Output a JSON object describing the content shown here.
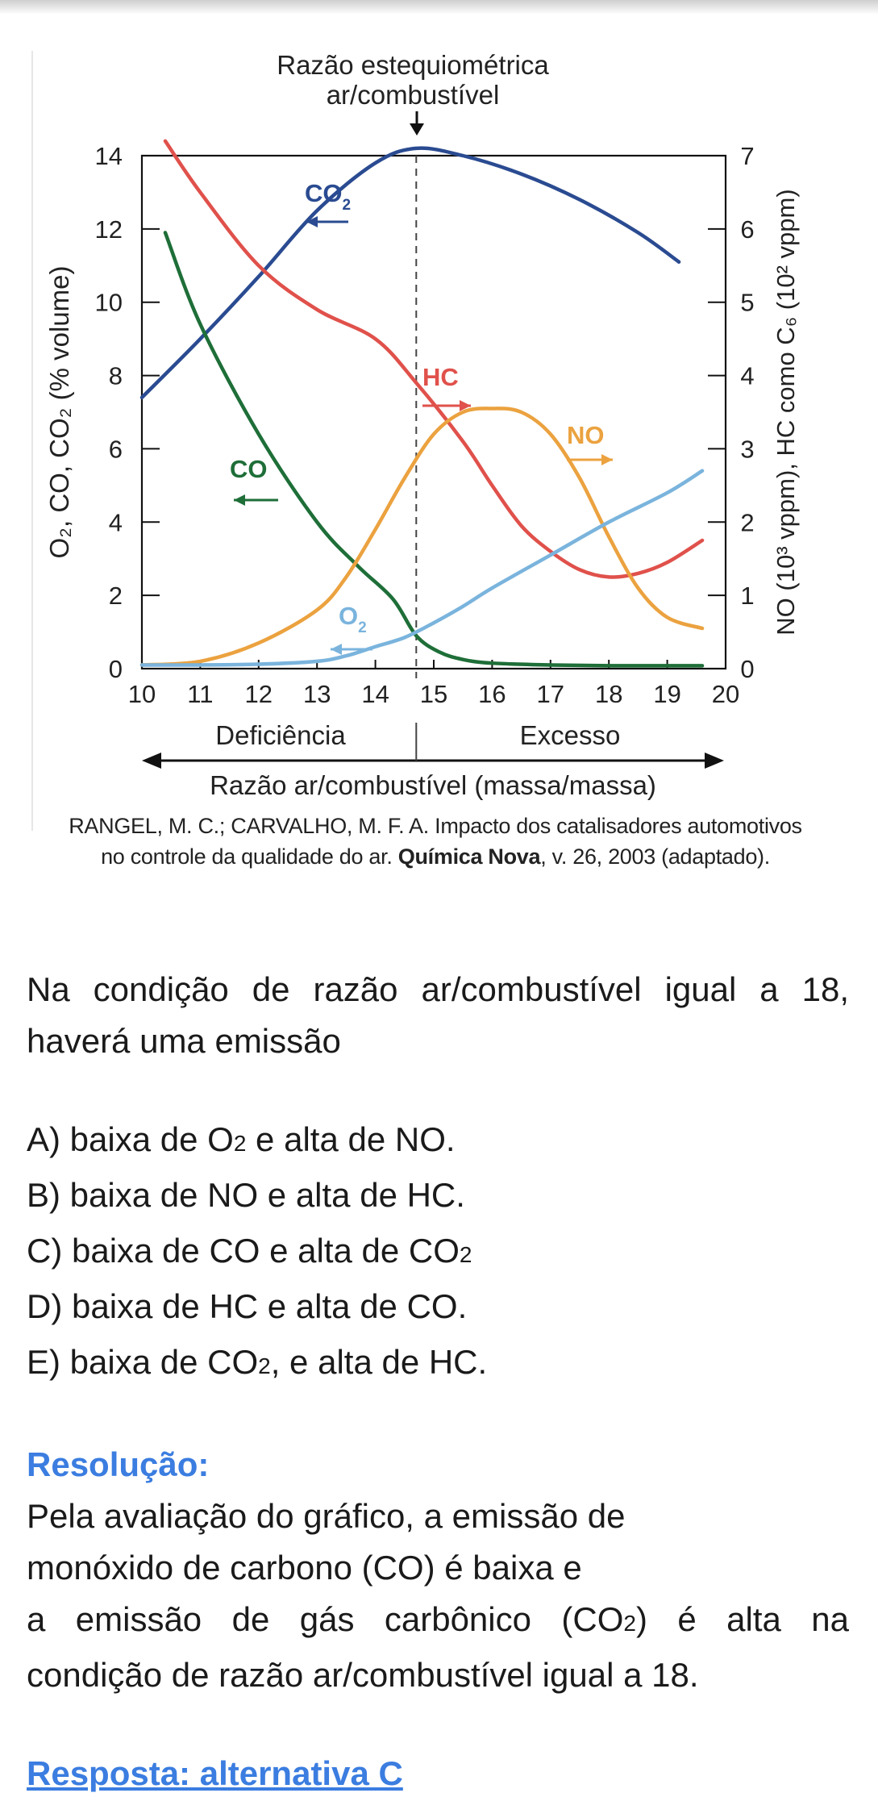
{
  "chart_data": {
    "type": "line",
    "title": "Razão estequiométrica ar/combustível",
    "title_lines": [
      "Razão estequiométrica",
      "ar/combustível"
    ],
    "xlabel": "Razão ar/combustível (massa/massa)",
    "ylabel_left": "O₂, CO, CO₂ (% volume)",
    "ylabel_right": "NO (10³ vppm), HC como C₆ (10² vppm)",
    "xlim": [
      10,
      20
    ],
    "ylim_left": [
      0,
      14
    ],
    "ylim_right": [
      0,
      7
    ],
    "x_ticks": [
      "10",
      "11",
      "12",
      "13",
      "14",
      "15",
      "16",
      "17",
      "18",
      "19",
      "20"
    ],
    "y_ticks_left": [
      "0",
      "2",
      "4",
      "6",
      "8",
      "10",
      "12",
      "14"
    ],
    "y_ticks_right": [
      "0",
      "1",
      "2",
      "3",
      "4",
      "5",
      "6",
      "7"
    ],
    "stoichiometric_x": 14.7,
    "region_labels": {
      "left": "Deficiência",
      "right": "Excesso"
    },
    "series": [
      {
        "name": "CO2",
        "label": "CO",
        "subscript": "2",
        "axis": "left",
        "color": "#2a4b91",
        "x": [
          10,
          11,
          12,
          13,
          14,
          14.7,
          15.5,
          16.5,
          17.5,
          18.5,
          19.2
        ],
        "y": [
          7.4,
          9.0,
          10.7,
          12.5,
          13.8,
          14.2,
          14.0,
          13.5,
          12.8,
          11.9,
          11.1
        ]
      },
      {
        "name": "HC",
        "label": "HC",
        "subscript": "",
        "axis": "right",
        "color": "#e0514b",
        "x": [
          10.4,
          11,
          12,
          13,
          14,
          14.7,
          15.5,
          16,
          16.5,
          17,
          17.5,
          18,
          18.5,
          19,
          19.6
        ],
        "y": [
          7.2,
          6.5,
          5.5,
          4.9,
          4.5,
          3.9,
          3.1,
          2.5,
          1.95,
          1.6,
          1.35,
          1.25,
          1.3,
          1.45,
          1.75
        ]
      },
      {
        "name": "CO",
        "label": "CO",
        "subscript": "",
        "axis": "left",
        "color": "#1e6e38",
        "x": [
          10.4,
          11,
          12,
          13,
          13.7,
          14.3,
          14.7,
          15.1,
          15.5,
          16,
          17,
          18,
          19,
          19.6
        ],
        "y": [
          11.9,
          9.4,
          6.4,
          4.0,
          2.8,
          1.9,
          0.9,
          0.45,
          0.25,
          0.15,
          0.1,
          0.08,
          0.08,
          0.08
        ]
      },
      {
        "name": "NO",
        "label": "NO",
        "subscript": "",
        "axis": "right",
        "color": "#eba23f",
        "x": [
          10,
          11,
          12,
          13,
          13.5,
          14,
          14.5,
          15,
          15.5,
          16,
          16.5,
          17,
          17.5,
          18,
          18.5,
          19,
          19.6
        ],
        "y": [
          0.05,
          0.1,
          0.35,
          0.8,
          1.25,
          1.9,
          2.6,
          3.2,
          3.5,
          3.55,
          3.5,
          3.2,
          2.6,
          1.8,
          1.1,
          0.7,
          0.55
        ]
      },
      {
        "name": "O2",
        "label": "O",
        "subscript": "2",
        "axis": "left",
        "color": "#7ab4dd",
        "x": [
          10,
          11,
          12,
          13,
          13.5,
          14,
          14.5,
          15,
          15.5,
          16,
          17,
          18,
          19,
          19.6
        ],
        "y": [
          0.1,
          0.1,
          0.12,
          0.2,
          0.35,
          0.6,
          0.85,
          1.25,
          1.7,
          2.2,
          3.1,
          4.0,
          4.8,
          5.4
        ]
      }
    ]
  },
  "citation": {
    "line1": "RANGEL, M. C.; CARVALHO, M. F. A. Impacto dos catalisadores automotivos",
    "line2_pre": "no controle da qualidade do ar. ",
    "line2_bold": "Química Nova",
    "line2_post": ", v. 26, 2003 (adaptado)."
  },
  "question": "Na condição de razão ar/combustível igual a 18, haverá uma emissão",
  "options": [
    {
      "letter": "A",
      "before": "A) baixa de O",
      "sub": "2",
      "after": " e alta de NO."
    },
    {
      "letter": "B",
      "before": "B) baixa de NO e alta de HC.",
      "sub": "",
      "after": ""
    },
    {
      "letter": "C",
      "before": "C) baixa de CO e alta de CO",
      "sub": "2",
      "after": ""
    },
    {
      "letter": "D",
      "before": "D) baixa de HC e alta de CO.",
      "sub": "",
      "after": ""
    },
    {
      "letter": "E",
      "before": "E) baixa de CO",
      "sub": "2",
      "after": ", e alta de HC."
    }
  ],
  "resolution": {
    "title": "Resolução:",
    "line1": "Pela avaliação do gráfico, a emissão de",
    "line2": "monóxido de carbono (CO) é baixa e",
    "line3_pre": "a emissão de gás carbônico (CO",
    "line3_sub": "2",
    "line3_post": ") é alta na",
    "line4": "condição de razão ar/combustível igual a 18."
  },
  "answer": "Resposta: alternativa C"
}
